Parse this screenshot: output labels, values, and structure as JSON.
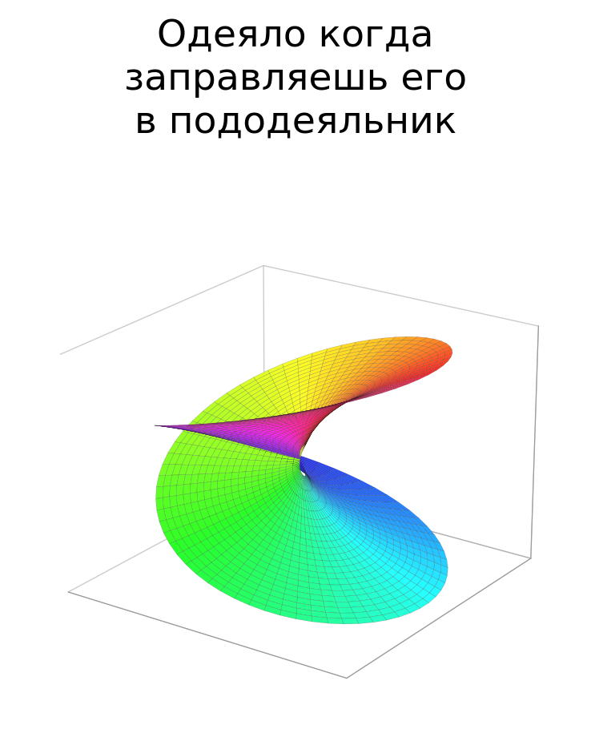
{
  "caption": "Одеяло когда\nзаправляешь его\nв пододеяльник",
  "chart_data": {
    "type": "surface",
    "grid": false,
    "tick_labels": false
  }
}
